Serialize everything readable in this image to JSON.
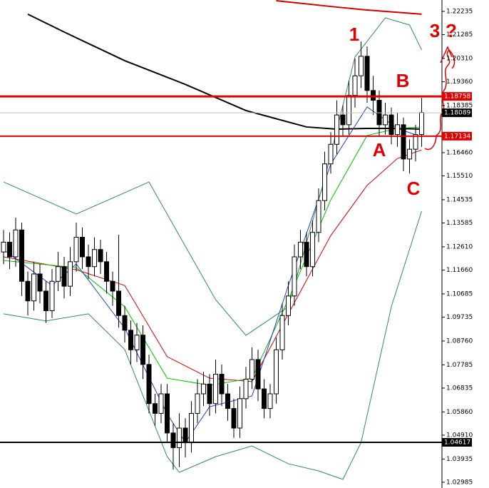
{
  "chart_data": {
    "type": "candlestick",
    "ylim": [
      1.0275,
      1.227
    ],
    "yticks": [
      1.22235,
      1.21285,
      {
        "value": 1.2031,
        "label": "1.20310"
      },
      {
        "value": 1.1936,
        "label": "1.19360"
      },
      1.18385,
      {
        "value": 1.1646,
        "label": "1.16460"
      },
      {
        "value": 1.1551,
        "label": "1.15510"
      },
      1.14535,
      1.13585,
      {
        "value": 1.1261,
        "label": "1.12610"
      },
      {
        "value": 1.1166,
        "label": "1.11660"
      },
      1.10685,
      1.09735,
      {
        "value": 1.0876,
        "label": "1.08760"
      },
      1.07785,
      1.06835,
      {
        "value": 1.0586,
        "label": "1.05860"
      },
      {
        "value": 1.0491,
        "label": "1.04910"
      },
      1.03935,
      1.02985
    ],
    "open": [
      1.124,
      1.128,
      1.122,
      1.133,
      1.112,
      1.104,
      1.115,
      1.108,
      1.1,
      1.112,
      1.118,
      1.11,
      1.12,
      1.13,
      1.122,
      1.118,
      1.125,
      1.12,
      1.112,
      1.108,
      1.098,
      1.092,
      1.084,
      1.09,
      1.078,
      1.062,
      1.058,
      1.066,
      1.05,
      1.044,
      1.052,
      1.046,
      1.058,
      1.066,
      1.07,
      1.062,
      1.074,
      1.066,
      1.06,
      1.052,
      1.064,
      1.072,
      1.08,
      1.068,
      1.06,
      1.066,
      1.084,
      1.098,
      1.106,
      1.122,
      1.128,
      1.118,
      1.132,
      1.145,
      1.16,
      1.168,
      1.18,
      1.176,
      1.188,
      1.196,
      1.204,
      1.19,
      1.186,
      1.176,
      1.18,
      1.172,
      1.176,
      1.162,
      1.166,
      1.172
    ],
    "high": [
      1.133,
      1.132,
      1.138,
      1.136,
      1.116,
      1.12,
      1.119,
      1.112,
      1.117,
      1.124,
      1.122,
      1.126,
      1.136,
      1.134,
      1.127,
      1.13,
      1.129,
      1.124,
      1.116,
      1.131,
      1.102,
      1.096,
      1.095,
      1.094,
      1.082,
      1.066,
      1.07,
      1.07,
      1.054,
      1.058,
      1.056,
      1.063,
      1.072,
      1.075,
      1.074,
      1.08,
      1.078,
      1.07,
      1.064,
      1.069,
      1.077,
      1.085,
      1.084,
      1.072,
      1.07,
      1.089,
      1.103,
      1.112,
      1.127,
      1.133,
      1.132,
      1.137,
      1.15,
      1.165,
      1.173,
      1.186,
      1.184,
      1.194,
      1.203,
      1.21,
      1.208,
      1.196,
      1.19,
      1.185,
      1.183,
      1.181,
      1.179,
      1.17,
      1.176,
      1.187
    ],
    "low": [
      1.119,
      1.117,
      1.118,
      1.106,
      1.098,
      1.1,
      1.103,
      1.095,
      1.097,
      1.108,
      1.105,
      1.106,
      1.116,
      1.117,
      1.113,
      1.114,
      1.115,
      1.107,
      1.102,
      1.093,
      1.087,
      1.078,
      1.079,
      1.072,
      1.058,
      1.053,
      1.054,
      1.046,
      1.035,
      1.036,
      1.04,
      1.042,
      1.054,
      1.061,
      1.057,
      1.058,
      1.061,
      1.055,
      1.048,
      1.048,
      1.06,
      1.068,
      1.063,
      1.056,
      1.056,
      1.062,
      1.08,
      1.094,
      1.102,
      1.117,
      1.114,
      1.114,
      1.128,
      1.141,
      1.156,
      1.164,
      1.171,
      1.172,
      1.183,
      1.191,
      1.185,
      1.18,
      1.171,
      1.172,
      1.168,
      1.167,
      1.157,
      1.156,
      1.161,
      1.167
    ],
    "close": [
      1.128,
      1.122,
      1.133,
      1.112,
      1.104,
      1.115,
      1.108,
      1.1,
      1.112,
      1.118,
      1.11,
      1.12,
      1.13,
      1.122,
      1.118,
      1.125,
      1.12,
      1.112,
      1.108,
      1.098,
      1.092,
      1.084,
      1.09,
      1.078,
      1.062,
      1.058,
      1.066,
      1.05,
      1.044,
      1.052,
      1.046,
      1.058,
      1.066,
      1.07,
      1.062,
      1.074,
      1.066,
      1.06,
      1.052,
      1.064,
      1.072,
      1.08,
      1.068,
      1.06,
      1.066,
      1.084,
      1.098,
      1.106,
      1.122,
      1.128,
      1.118,
      1.132,
      1.145,
      1.16,
      1.168,
      1.18,
      1.176,
      1.188,
      1.196,
      1.204,
      1.19,
      1.186,
      1.176,
      1.18,
      1.172,
      1.176,
      1.162,
      1.166,
      1.172,
      1.181
    ],
    "lines": [
      {
        "color": "#000000",
        "width": 2,
        "x": [
          4,
          10,
          20,
          30,
          40,
          50,
          55,
          60,
          65,
          69
        ],
        "values": [
          1.2212,
          1.2139,
          1.2022,
          1.1925,
          1.1818,
          1.1751,
          1.1742,
          1.1745,
          1.1745,
          1.1742
        ]
      },
      {
        "color": "#d00000",
        "width": 2,
        "x": [
          45,
          55,
          60,
          69
        ],
        "values": [
          1.2267,
          1.2241,
          1.2229,
          1.2212
        ]
      },
      {
        "color": "#d00000",
        "width": 1,
        "x": [
          0,
          12,
          20,
          27,
          34,
          41,
          47,
          54,
          60,
          65,
          69
        ],
        "values": [
          1.122,
          1.1167,
          1.1103,
          1.0812,
          1.0724,
          1.071,
          1.0987,
          1.1307,
          1.1512,
          1.1622,
          1.1657
        ]
      },
      {
        "color": "#00c000",
        "width": 1,
        "x": [
          0,
          12,
          20,
          27,
          34,
          41,
          47,
          54,
          60,
          65,
          69
        ],
        "values": [
          1.1205,
          1.1176,
          1.1016,
          1.0724,
          1.0695,
          1.0724,
          1.1045,
          1.1453,
          1.1716,
          1.1745,
          1.1751
        ]
      },
      {
        "color": "#2040c0",
        "width": 1,
        "x": [
          0,
          8,
          12,
          20,
          27,
          30,
          34,
          41,
          47,
          54,
          60,
          65,
          69
        ],
        "values": [
          1.1249,
          1.1103,
          1.1191,
          1.0928,
          1.0578,
          1.0461,
          1.0607,
          1.0651,
          1.1103,
          1.1599,
          1.1833,
          1.1745,
          1.171
        ]
      },
      {
        "color": "#2e8b57",
        "width": 1,
        "x": [
          0,
          12,
          24,
          35,
          40,
          47,
          53,
          58,
          63,
          67,
          69
        ],
        "values": [
          1.1526,
          1.1395,
          1.1526,
          1.1045,
          1.0899,
          1.1016,
          1.1541,
          1.2037,
          1.2197,
          1.2168,
          1.2066
        ]
      },
      {
        "color": "#2e8b57",
        "width": 1,
        "x": [
          0,
          7,
          14,
          20,
          27,
          29,
          35,
          41,
          47,
          52,
          56,
          59,
          64,
          69
        ],
        "values": [
          1.0987,
          1.0958,
          1.0987,
          1.0841,
          1.0403,
          1.0339,
          1.0403,
          1.0447,
          1.0374,
          1.0345,
          1.031,
          1.0461,
          1.1016,
          1.1407
        ]
      }
    ],
    "levels": [
      {
        "value": 1.18758,
        "color": "#e00000",
        "width": 3
      },
      {
        "value": 1.18089,
        "color": "#c0c0c0",
        "width": 1
      },
      {
        "value": 1.17134,
        "color": "#e00000",
        "width": 2
      },
      {
        "value": 1.04617,
        "color": "#000000",
        "width": 2
      }
    ],
    "annotations": [
      "1",
      "B",
      "A",
      "C",
      "3",
      "?"
    ]
  }
}
